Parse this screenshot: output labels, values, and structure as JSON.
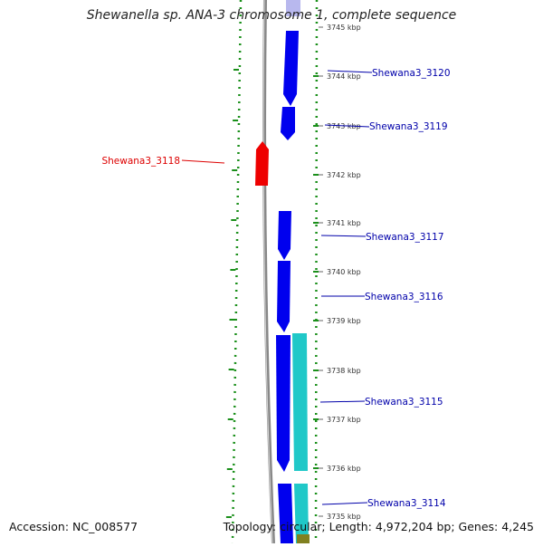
{
  "map": {
    "title": "Shewanella sp. ANA-3 chromosome 1, complete sequence",
    "accession_text": "Accession: NC_008577",
    "summary_text": "Topology: circular; Length: 4,972,204 bp; Genes: 4,245"
  },
  "colors": {
    "forward_gene": "#0000ee",
    "reverse_gene": "#ee0000",
    "cds_feature": "#20c8c8",
    "backbone": "#888888",
    "gc_ticks": "#1a8f1a",
    "label_blue": "#0000aa",
    "label_red": "#dd0000"
  },
  "ticks": [
    "3745 kbp",
    "3744 kbp",
    "3743 kbp",
    "3742 kbp",
    "3741 kbp",
    "3740 kbp",
    "3739 kbp",
    "3738 kbp",
    "3737 kbp",
    "3736 kbp",
    "3735 kbp"
  ],
  "genes": [
    {
      "id": "Shewana3_3120",
      "strand": "forward",
      "track": "gene"
    },
    {
      "id": "Shewana3_3119",
      "strand": "forward",
      "track": "gene"
    },
    {
      "id": "Shewana3_3118",
      "strand": "reverse",
      "track": "gene"
    },
    {
      "id": "Shewana3_3117",
      "strand": "forward",
      "track": "gene"
    },
    {
      "id": "Shewana3_3116",
      "strand": "forward",
      "track": "gene"
    },
    {
      "id": "Shewana3_3115",
      "strand": "forward",
      "track": "gene"
    },
    {
      "id": "Shewana3_3114",
      "strand": "forward",
      "track": "gene"
    }
  ]
}
